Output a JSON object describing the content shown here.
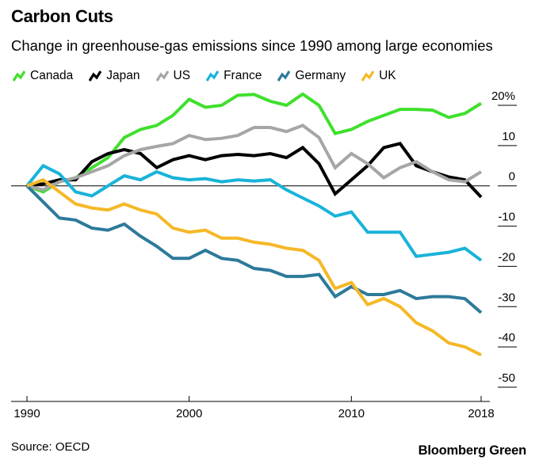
{
  "title": "Carbon Cuts",
  "subtitle": "Change in greenhouse-gas emissions since 1990 among large economies",
  "source": "Source: OECD",
  "brand": "Bloomberg Green",
  "chart_data": {
    "type": "line",
    "title": "Carbon Cuts",
    "subtitle": "Change in greenhouse-gas emissions since 1990 among large economies",
    "xlabel": "",
    "ylabel": "",
    "x": [
      1990,
      1991,
      1992,
      1993,
      1994,
      1995,
      1996,
      1997,
      1998,
      1999,
      2000,
      2001,
      2002,
      2003,
      2004,
      2005,
      2006,
      2007,
      2008,
      2009,
      2010,
      2011,
      2012,
      2013,
      2014,
      2015,
      2016,
      2017,
      2018
    ],
    "xticks": [
      "1990",
      "2000",
      "2010",
      "2018"
    ],
    "yticks": [
      {
        "value": 20,
        "label": "20%"
      },
      {
        "value": 10,
        "label": "10"
      },
      {
        "value": 0,
        "label": "0"
      },
      {
        "value": -10,
        "label": "-10"
      },
      {
        "value": -20,
        "label": "-20"
      },
      {
        "value": -30,
        "label": "-30"
      },
      {
        "value": -40,
        "label": "-40"
      },
      {
        "value": -50,
        "label": "-50"
      }
    ],
    "xlim": [
      1990,
      2018
    ],
    "ylim": [
      -50,
      20
    ],
    "grid": "y-tick-marks",
    "legend_position": "top",
    "series": [
      {
        "name": "Canada",
        "color": "#3fe02c",
        "values": [
          0,
          -1.5,
          1,
          2,
          4.5,
          7,
          12,
          14,
          15,
          17.5,
          21.5,
          19.5,
          20,
          22.5,
          22.7,
          21,
          20,
          22.8,
          20,
          13,
          14,
          16,
          17.5,
          19,
          19,
          18.8,
          17,
          18,
          20.5
        ]
      },
      {
        "name": "Japan",
        "color": "#000000",
        "values": [
          0,
          0.5,
          1.5,
          1.5,
          6,
          8,
          9,
          8,
          4.5,
          6.5,
          7.5,
          6.5,
          7.5,
          7.8,
          7.5,
          8,
          7,
          9.5,
          5.5,
          -2,
          1.5,
          5,
          9.5,
          10.5,
          5,
          3.5,
          2.2,
          1.5,
          -2.8
        ]
      },
      {
        "name": "US",
        "color": "#a6a6a6",
        "values": [
          0,
          -1,
          1,
          2,
          3.5,
          5,
          7.5,
          9,
          9.8,
          10.5,
          12.5,
          11.5,
          11.8,
          12.5,
          14.5,
          14.5,
          13.5,
          15,
          12,
          4.5,
          8,
          5.5,
          2,
          4.5,
          6,
          3.5,
          1.5,
          1,
          3.5
        ]
      },
      {
        "name": "France",
        "color": "#19b3d9",
        "values": [
          0,
          5,
          3,
          -1.5,
          -2.5,
          0,
          2.5,
          1.5,
          3.5,
          2,
          1.5,
          1.8,
          1,
          1.5,
          1.2,
          1.5,
          -1,
          -3,
          -5,
          -7.5,
          -6.5,
          -11.5,
          -11.5,
          -11.5,
          -17.5,
          -17,
          -16.5,
          -15.5,
          -18.5
        ]
      },
      {
        "name": "Germany",
        "color": "#2d7a9a",
        "values": [
          0,
          -4,
          -8,
          -8.5,
          -10.5,
          -11,
          -9.5,
          -12.5,
          -15,
          -18,
          -18,
          -16,
          -18,
          -18.5,
          -20.5,
          -21,
          -22.5,
          -22.5,
          -22,
          -27.5,
          -25,
          -27,
          -27,
          -26,
          -28,
          -27.5,
          -27.5,
          -28,
          -31.5
        ]
      },
      {
        "name": "UK",
        "color": "#f5b827",
        "values": [
          0,
          1.5,
          -1.5,
          -4.5,
          -5.5,
          -6,
          -4.5,
          -6,
          -7,
          -10.5,
          -11.5,
          -11,
          -13,
          -13,
          -14,
          -14.5,
          -15.5,
          -16,
          -18.5,
          -25.5,
          -24,
          -29.5,
          -28,
          -30,
          -34,
          -36,
          -39,
          -40,
          -42
        ]
      }
    ]
  }
}
